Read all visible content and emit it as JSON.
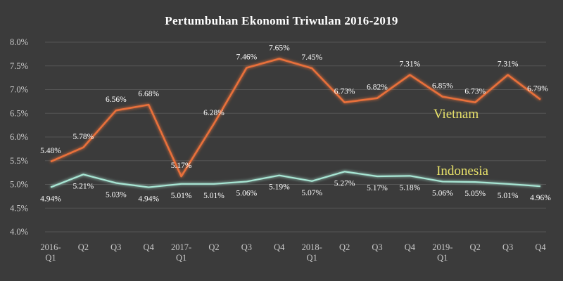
{
  "chart_data": {
    "type": "line",
    "title": "Pertumbuhan Ekonomi Triwulan 2016-2019",
    "categories": [
      [
        "2016-",
        "Q1"
      ],
      [
        "Q2"
      ],
      [
        "Q3"
      ],
      [
        "Q4"
      ],
      [
        "2017-",
        "Q1"
      ],
      [
        "Q2"
      ],
      [
        "Q3"
      ],
      [
        "Q4"
      ],
      [
        "2018-",
        "Q1"
      ],
      [
        "Q2"
      ],
      [
        "Q3"
      ],
      [
        "Q4"
      ],
      [
        "2019-",
        "Q1"
      ],
      [
        "Q2"
      ],
      [
        "Q3"
      ],
      [
        "Q4"
      ]
    ],
    "ylim": [
      4.0,
      8.0
    ],
    "yticks": [
      4.0,
      4.5,
      5.0,
      5.5,
      6.0,
      6.5,
      7.0,
      7.5,
      8.0
    ],
    "ytick_labels": [
      "4.0%",
      "4.5%",
      "5.0%",
      "5.5%",
      "6.0%",
      "6.5%",
      "7.0%",
      "7.5%",
      "8.0%"
    ],
    "grid": true,
    "series": [
      {
        "name": "Vietnam",
        "color": "#e8703a",
        "label_color": "#e8e26a",
        "values": [
          5.48,
          5.78,
          6.56,
          6.68,
          5.17,
          6.28,
          7.46,
          7.65,
          7.45,
          6.73,
          6.82,
          7.31,
          6.85,
          6.73,
          7.31,
          6.79
        ],
        "labels": [
          "5.48%",
          "5.78%",
          "6.56%",
          "6.68%",
          "5.17%",
          "6.28%",
          "7.46%",
          "7.65%",
          "7.45%",
          "6.73%",
          "6.82%",
          "7.31%",
          "6.85%",
          "6.73%",
          "7.31%",
          "6.79%"
        ]
      },
      {
        "name": "Indonesia",
        "color": "#a8e6d4",
        "label_color": "#e8e26a",
        "values": [
          4.94,
          5.21,
          5.03,
          4.94,
          5.01,
          5.01,
          5.06,
          5.19,
          5.07,
          5.27,
          5.17,
          5.18,
          5.06,
          5.05,
          5.01,
          4.96
        ],
        "labels": [
          "4.94%",
          "5.21%",
          "5.03%",
          "4.94%",
          "5.01%",
          "5.01%",
          "5.06%",
          "5.19%",
          "5.07%",
          "5.27%",
          "5.17%",
          "5.18%",
          "5.06%",
          "5.05%",
          "5.01%",
          "4.96%"
        ]
      }
    ]
  }
}
